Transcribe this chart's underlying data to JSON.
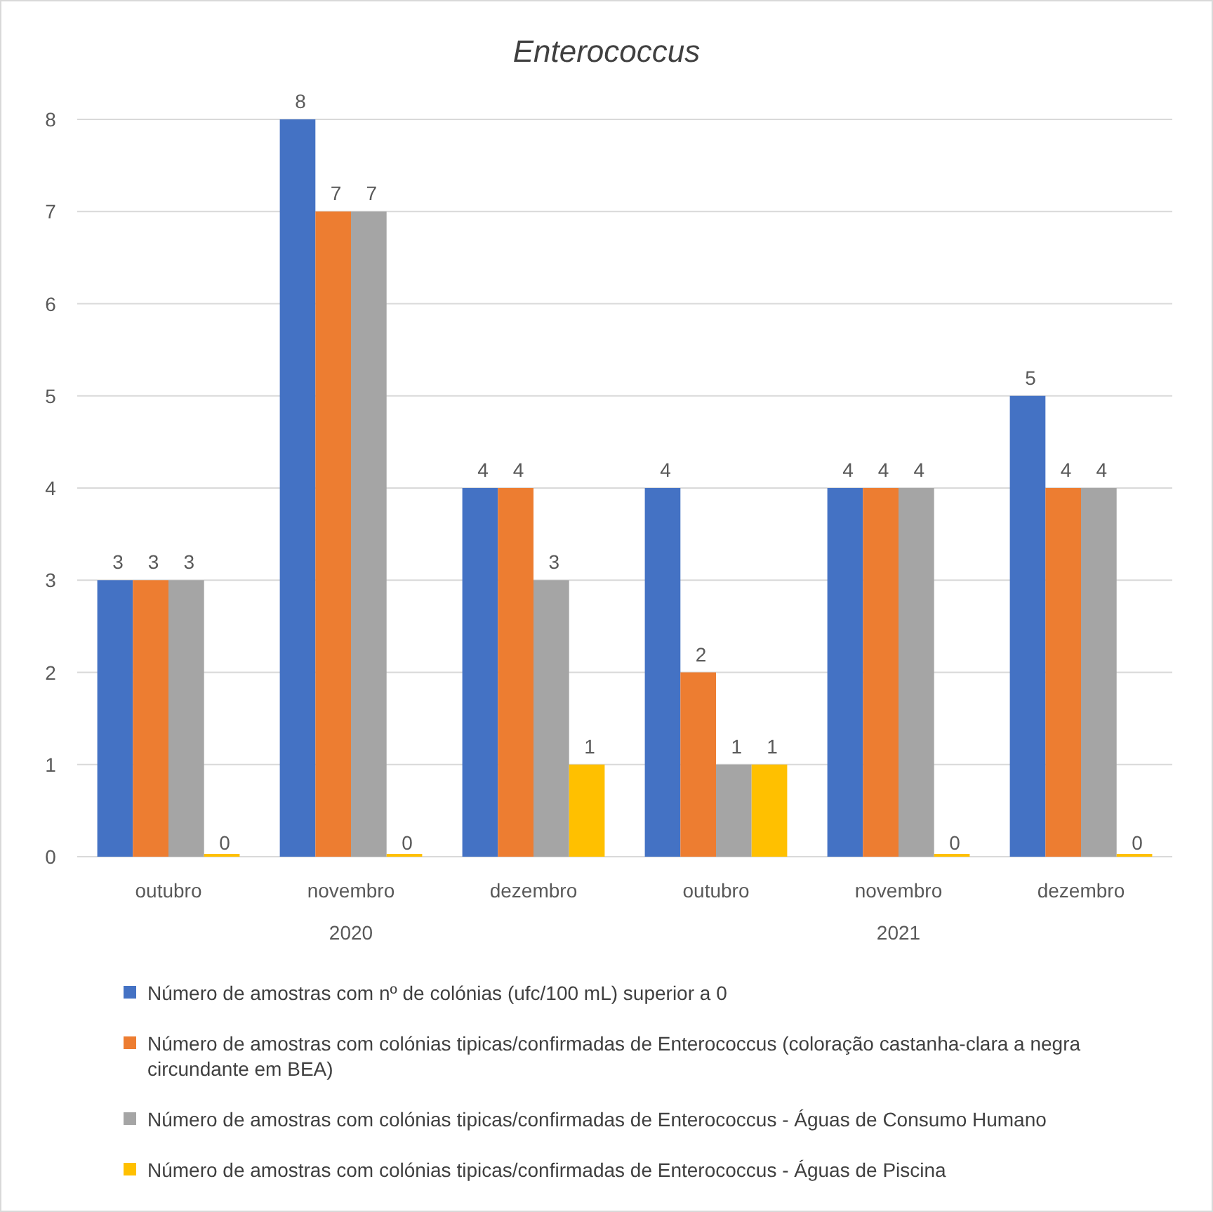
{
  "chart_data": {
    "type": "bar",
    "title": "Enterococcus",
    "categories": [
      "outubro",
      "novembro",
      "dezembro",
      "outubro",
      "novembro",
      "dezembro"
    ],
    "annotations": [
      "2020",
      "2021"
    ],
    "series": [
      {
        "name": "Número de amostras com nº de colónias (ufc/100 mL) superior a 0",
        "color": "#4472c4",
        "values": [
          3,
          8,
          4,
          4,
          4,
          5
        ]
      },
      {
        "name": "Número de amostras com colónias tipicas/confirmadas de Enterococcus (coloração castanha-clara a negra circundante em BEA)",
        "color": "#ed7d31",
        "values": [
          3,
          7,
          4,
          2,
          4,
          4
        ]
      },
      {
        "name": "Número de amostras com colónias tipicas/confirmadas de Enterococcus - Águas de Consumo Humano",
        "color": "#a5a5a5",
        "values": [
          3,
          7,
          3,
          1,
          4,
          4
        ]
      },
      {
        "name": "Número de amostras com colónias tipicas/confirmadas de Enterococcus - Águas de Piscina",
        "color": "#ffc000",
        "values": [
          0,
          0,
          1,
          1,
          0,
          0
        ]
      }
    ],
    "ylim": [
      0,
      8
    ],
    "yticks": [
      0,
      1,
      2,
      3,
      4,
      5,
      6,
      7,
      8
    ],
    "grid": "y",
    "data_labels": true,
    "legend": "bottom"
  }
}
